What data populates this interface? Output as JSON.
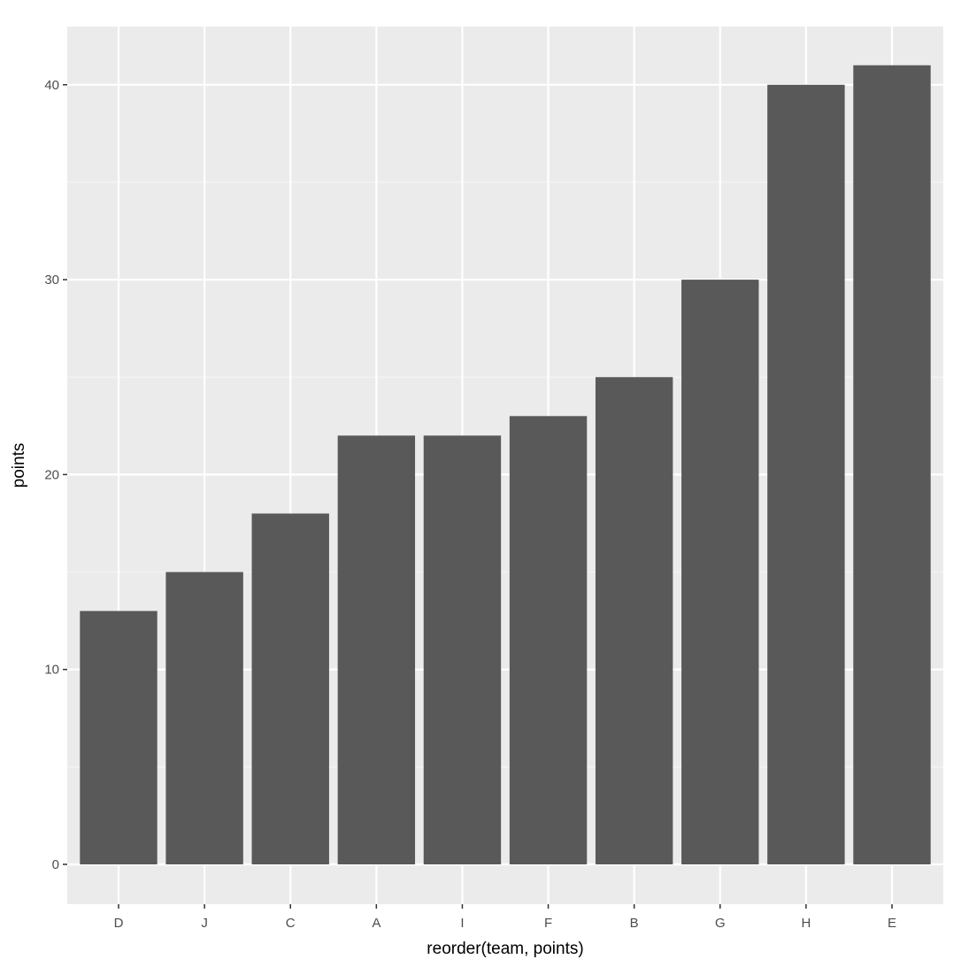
{
  "chart_data": {
    "type": "bar",
    "title": "",
    "xlabel": "reorder(team, points)",
    "ylabel": "points",
    "categories": [
      "D",
      "J",
      "C",
      "A",
      "I",
      "F",
      "B",
      "G",
      "H",
      "E"
    ],
    "values": [
      13,
      15,
      18,
      22,
      22,
      23,
      25,
      30,
      40,
      41
    ],
    "ylim": [
      -2.05,
      43.05
    ],
    "yticks": [
      0,
      10,
      20,
      30,
      40
    ],
    "ytick_labels": [
      "0",
      "10",
      "20",
      "30",
      "40"
    ],
    "grid": true,
    "legend": null,
    "colors": {
      "bar": "#595959",
      "panel_background": "#ebebeb",
      "grid": "#ffffff",
      "tick_text": "#4d4d4d",
      "axis_title": "#000000"
    }
  }
}
